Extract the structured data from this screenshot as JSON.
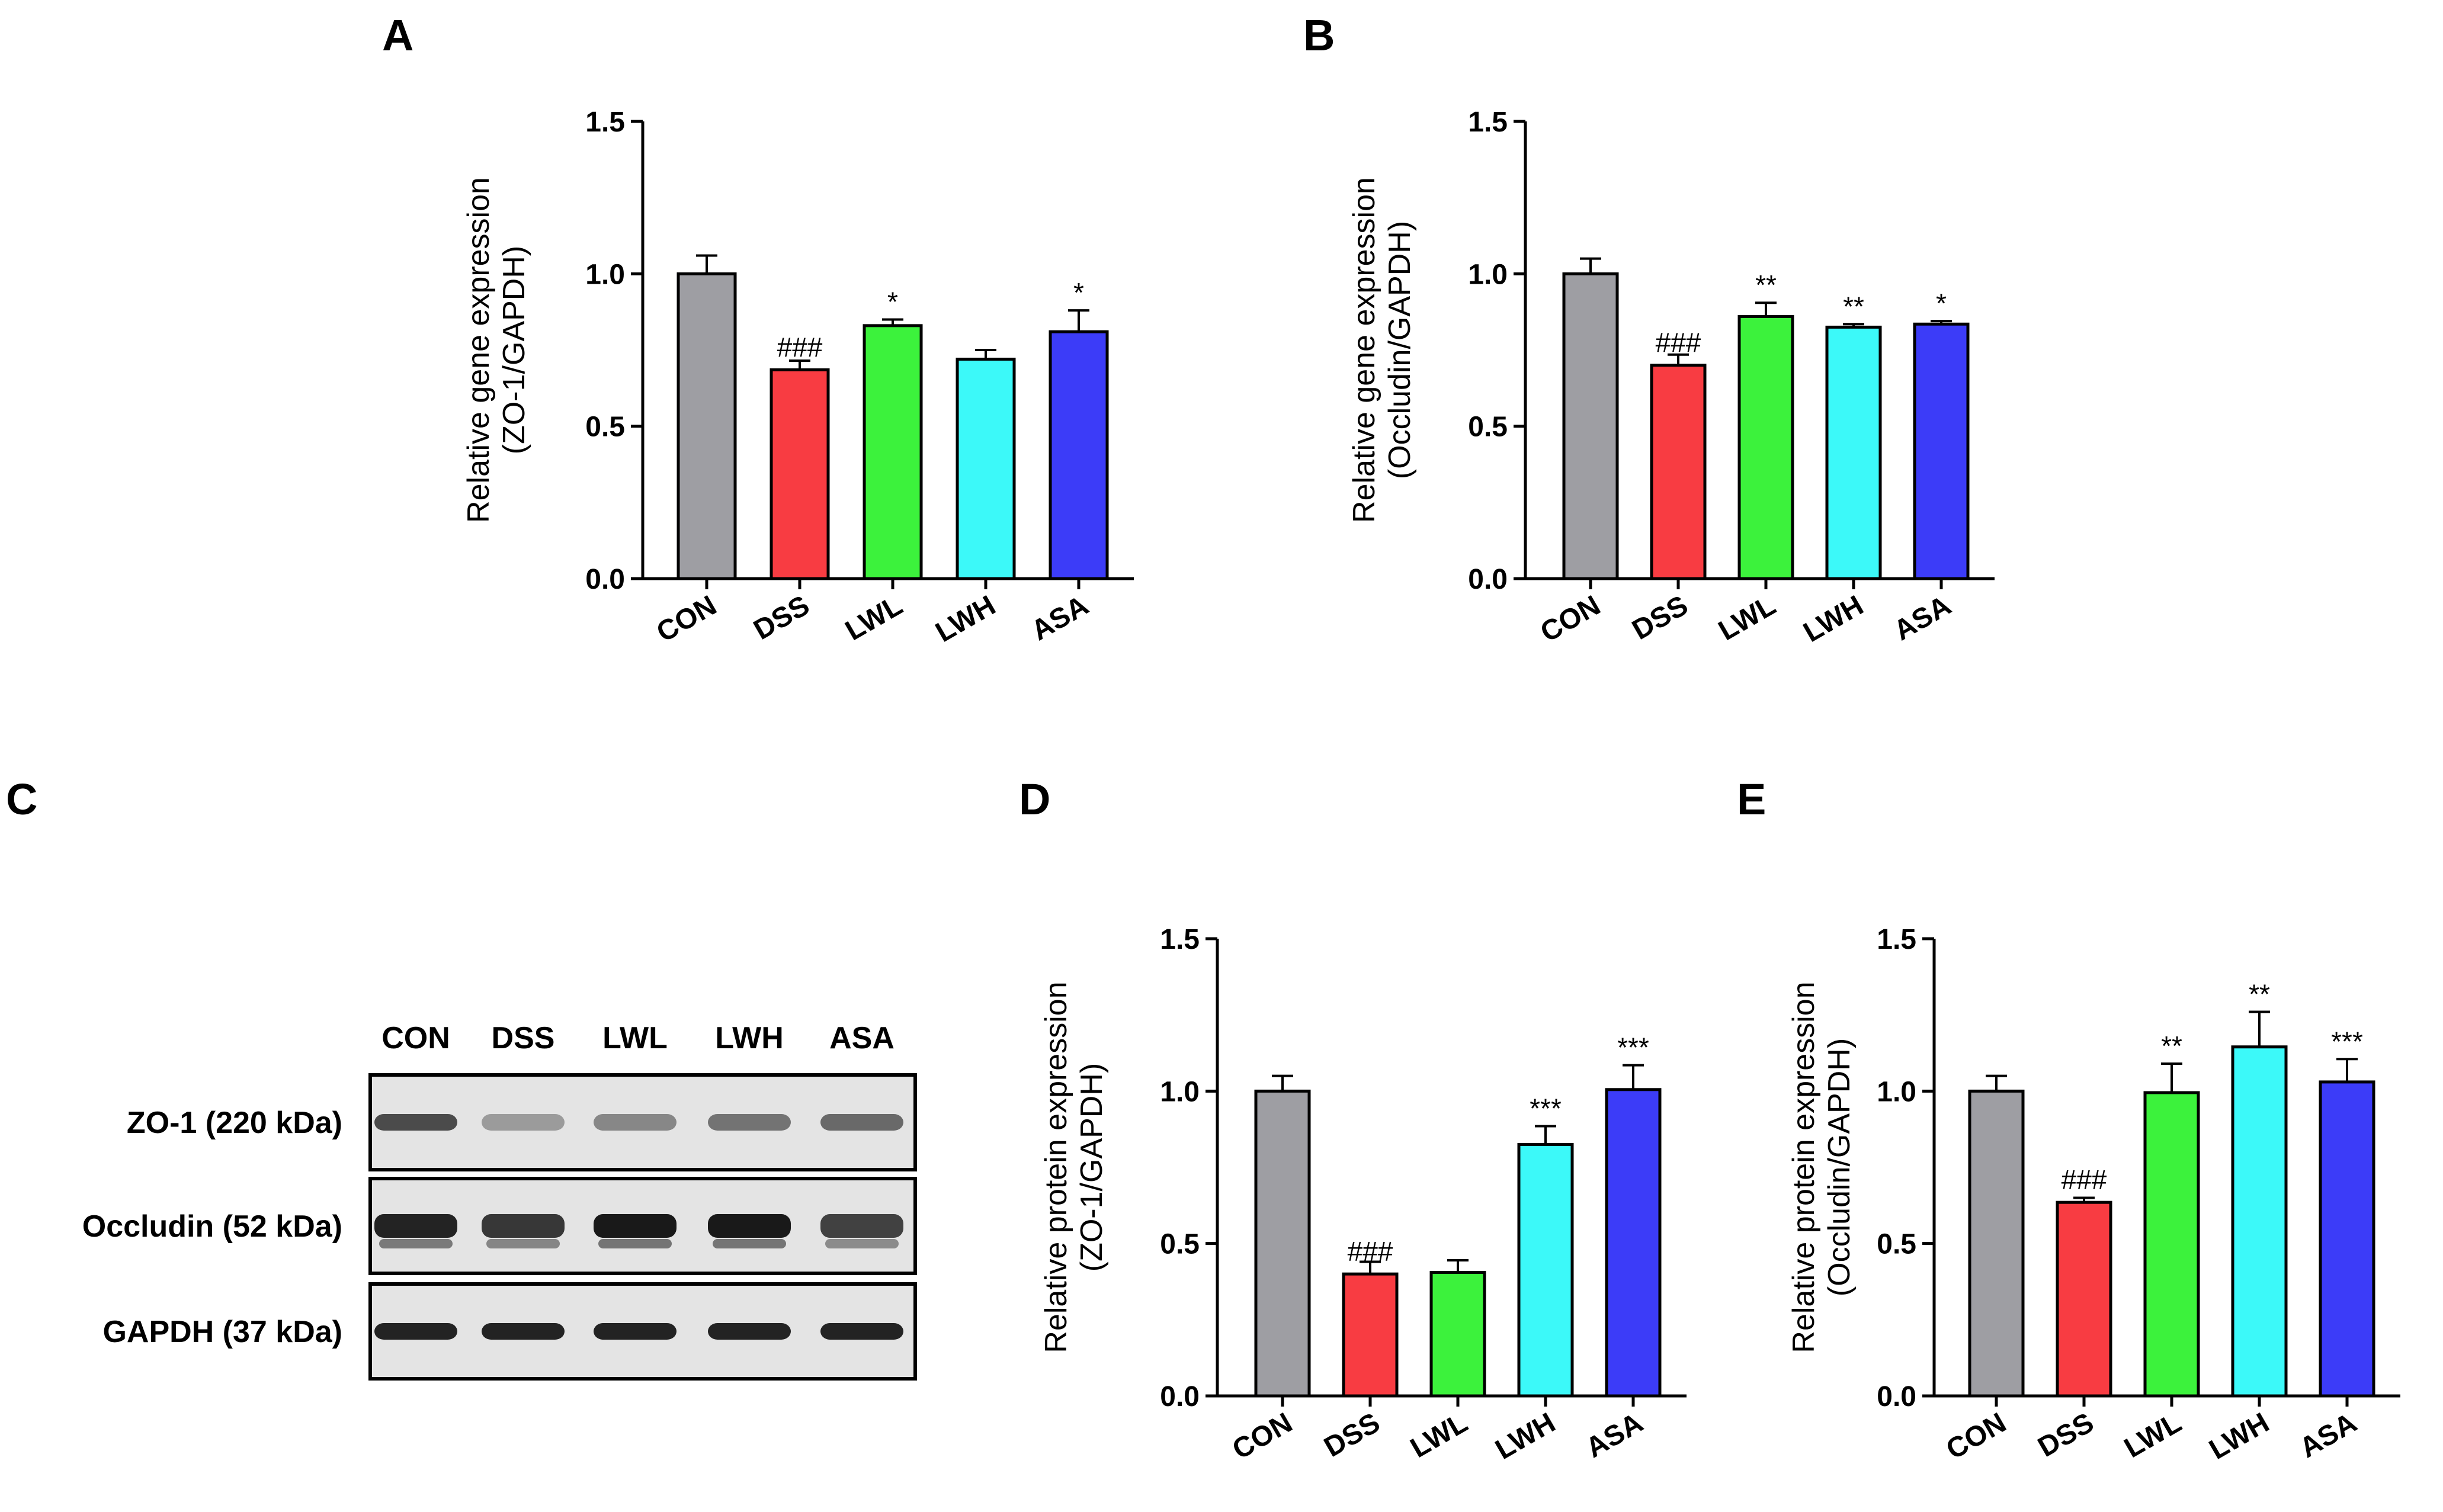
{
  "panels": {
    "A": "A",
    "B": "B",
    "C": "C",
    "D": "D",
    "E": "E"
  },
  "colors": {
    "CON": "#9e9ea3",
    "DSS": "#f83c42",
    "LWL": "#3cf23c",
    "LWH": "#3cf9f9",
    "ASA": "#3c3cf8"
  },
  "chart_data": [
    {
      "panel": "A",
      "type": "bar",
      "categories": [
        "CON",
        "DSS",
        "LWL",
        "LWH",
        "ASA"
      ],
      "values": [
        1.0,
        0.685,
        0.83,
        0.72,
        0.81
      ],
      "errors": [
        0.06,
        0.03,
        0.02,
        0.03,
        0.07
      ],
      "annotations": [
        "",
        "###",
        "*",
        "",
        "*"
      ],
      "ylabel_line1": "Relative gene expression",
      "ylabel_line2": "(ZO-1/GAPDH)",
      "ylim": [
        0,
        1.5
      ],
      "yticks": [
        "0.0",
        "0.5",
        "1.0",
        "1.5"
      ],
      "ytick_values": [
        0,
        0.5,
        1.0,
        1.5
      ]
    },
    {
      "panel": "B",
      "type": "bar",
      "categories": [
        "CON",
        "DSS",
        "LWL",
        "LWH",
        "ASA"
      ],
      "values": [
        1.0,
        0.7,
        0.86,
        0.825,
        0.835
      ],
      "errors": [
        0.05,
        0.035,
        0.045,
        0.01,
        0.01
      ],
      "annotations": [
        "",
        "###",
        "**",
        "**",
        "*"
      ],
      "ylabel_line1": "Relative gene expression",
      "ylabel_line2": "(Occludin/GAPDH)",
      "ylim": [
        0,
        1.5
      ],
      "yticks": [
        "0.0",
        "0.5",
        "1.0",
        "1.5"
      ],
      "ytick_values": [
        0,
        0.5,
        1.0,
        1.5
      ]
    },
    {
      "panel": "D",
      "type": "bar",
      "categories": [
        "CON",
        "DSS",
        "LWL",
        "LWH",
        "ASA"
      ],
      "values": [
        1.0,
        0.4,
        0.405,
        0.825,
        1.005
      ],
      "errors": [
        0.05,
        0.04,
        0.04,
        0.06,
        0.08
      ],
      "annotations": [
        "",
        "###",
        "",
        "***",
        "***"
      ],
      "ylabel_line1": "Relative protein expression",
      "ylabel_line2": "(ZO-1/GAPDH)",
      "ylim": [
        0,
        1.5
      ],
      "yticks": [
        "0.0",
        "0.5",
        "1.0",
        "1.5"
      ],
      "ytick_values": [
        0,
        0.5,
        1.0,
        1.5
      ]
    },
    {
      "panel": "E",
      "type": "bar",
      "categories": [
        "CON",
        "DSS",
        "LWL",
        "LWH",
        "ASA"
      ],
      "values": [
        1.0,
        0.635,
        0.995,
        1.145,
        1.03
      ],
      "errors": [
        0.05,
        0.015,
        0.095,
        0.115,
        0.075
      ],
      "annotations": [
        "",
        "###",
        "**",
        "**",
        "***"
      ],
      "ylabel_line1": "Relative protein expression",
      "ylabel_line2": "(Occludin/GAPDH)",
      "ylim": [
        0,
        1.5
      ],
      "yticks": [
        "0.0",
        "0.5",
        "1.0",
        "1.5"
      ],
      "ytick_values": [
        0,
        0.5,
        1.0,
        1.5
      ]
    }
  ],
  "blot": {
    "lanes": [
      "CON",
      "DSS",
      "LWL",
      "LWH",
      "ASA"
    ],
    "rows": [
      {
        "label": "ZO-1 (220 kDa)",
        "intensity": [
          0.75,
          0.35,
          0.45,
          0.55,
          0.6
        ]
      },
      {
        "label": "Occludin (52 kDa)",
        "intensity": [
          0.95,
          0.85,
          1.0,
          1.0,
          0.8
        ]
      },
      {
        "label": "GAPDH (37 kDa)",
        "intensity": [
          0.95,
          0.95,
          0.95,
          0.95,
          0.95
        ]
      }
    ]
  }
}
